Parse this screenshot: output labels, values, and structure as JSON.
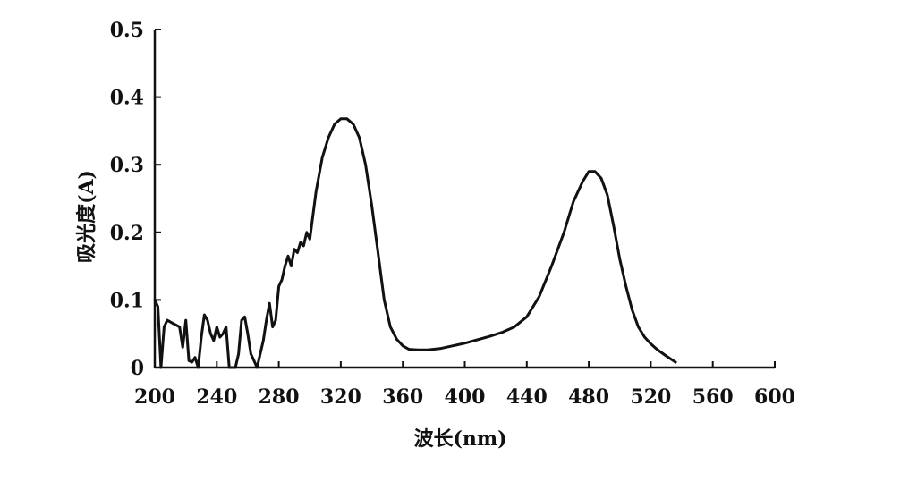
{
  "chart_data": {
    "type": "line",
    "xlabel": "波长(nm)",
    "ylabel": "吸光度(A)",
    "xlim": [
      200,
      600
    ],
    "ylim": [
      0,
      0.5
    ],
    "x_ticks": [
      200,
      240,
      280,
      320,
      360,
      400,
      440,
      480,
      520,
      560,
      600
    ],
    "y_ticks": [
      0,
      0.1,
      0.2,
      0.3,
      0.4,
      0.5
    ],
    "x_tick_labels": [
      "200",
      "240",
      "280",
      "320",
      "360",
      "400",
      "440",
      "480",
      "520",
      "560",
      "600"
    ],
    "y_tick_labels": [
      "0",
      "0.1",
      "0.2",
      "0.3",
      "0.4",
      "0.5"
    ],
    "grid": false,
    "series": [
      {
        "points": [
          [
            200,
            0.1
          ],
          [
            202,
            0.09
          ],
          [
            204,
            0.0
          ],
          [
            206,
            0.06
          ],
          [
            208,
            0.07
          ],
          [
            212,
            0.065
          ],
          [
            216,
            0.06
          ],
          [
            218,
            0.03
          ],
          [
            220,
            0.07
          ],
          [
            222,
            0.01
          ],
          [
            224,
            0.008
          ],
          [
            226,
            0.015
          ],
          [
            228,
            0.0
          ],
          [
            230,
            0.045
          ],
          [
            232,
            0.078
          ],
          [
            234,
            0.07
          ],
          [
            236,
            0.05
          ],
          [
            238,
            0.04
          ],
          [
            240,
            0.06
          ],
          [
            242,
            0.045
          ],
          [
            244,
            0.05
          ],
          [
            246,
            0.06
          ],
          [
            248,
            0.0
          ],
          [
            252,
            0.0
          ],
          [
            254,
            0.02
          ],
          [
            256,
            0.07
          ],
          [
            258,
            0.075
          ],
          [
            260,
            0.05
          ],
          [
            262,
            0.02
          ],
          [
            264,
            0.01
          ],
          [
            266,
            0.0
          ],
          [
            268,
            0.02
          ],
          [
            270,
            0.04
          ],
          [
            272,
            0.07
          ],
          [
            274,
            0.095
          ],
          [
            276,
            0.06
          ],
          [
            278,
            0.07
          ],
          [
            280,
            0.12
          ],
          [
            282,
            0.13
          ],
          [
            284,
            0.15
          ],
          [
            286,
            0.165
          ],
          [
            288,
            0.15
          ],
          [
            290,
            0.175
          ],
          [
            292,
            0.17
          ],
          [
            294,
            0.185
          ],
          [
            296,
            0.18
          ],
          [
            298,
            0.2
          ],
          [
            300,
            0.19
          ],
          [
            304,
            0.26
          ],
          [
            308,
            0.31
          ],
          [
            312,
            0.34
          ],
          [
            316,
            0.36
          ],
          [
            320,
            0.368
          ],
          [
            324,
            0.368
          ],
          [
            328,
            0.36
          ],
          [
            332,
            0.34
          ],
          [
            336,
            0.3
          ],
          [
            340,
            0.24
          ],
          [
            344,
            0.17
          ],
          [
            348,
            0.1
          ],
          [
            352,
            0.06
          ],
          [
            356,
            0.042
          ],
          [
            360,
            0.032
          ],
          [
            364,
            0.027
          ],
          [
            370,
            0.026
          ],
          [
            376,
            0.026
          ],
          [
            384,
            0.028
          ],
          [
            392,
            0.032
          ],
          [
            400,
            0.036
          ],
          [
            408,
            0.041
          ],
          [
            416,
            0.046
          ],
          [
            424,
            0.052
          ],
          [
            432,
            0.06
          ],
          [
            440,
            0.075
          ],
          [
            448,
            0.105
          ],
          [
            456,
            0.15
          ],
          [
            464,
            0.2
          ],
          [
            470,
            0.245
          ],
          [
            476,
            0.275
          ],
          [
            480,
            0.29
          ],
          [
            484,
            0.29
          ],
          [
            488,
            0.28
          ],
          [
            492,
            0.255
          ],
          [
            496,
            0.21
          ],
          [
            500,
            0.16
          ],
          [
            504,
            0.12
          ],
          [
            508,
            0.085
          ],
          [
            512,
            0.06
          ],
          [
            516,
            0.045
          ],
          [
            520,
            0.035
          ],
          [
            524,
            0.027
          ],
          [
            530,
            0.017
          ],
          [
            536,
            0.008
          ]
        ]
      }
    ]
  }
}
